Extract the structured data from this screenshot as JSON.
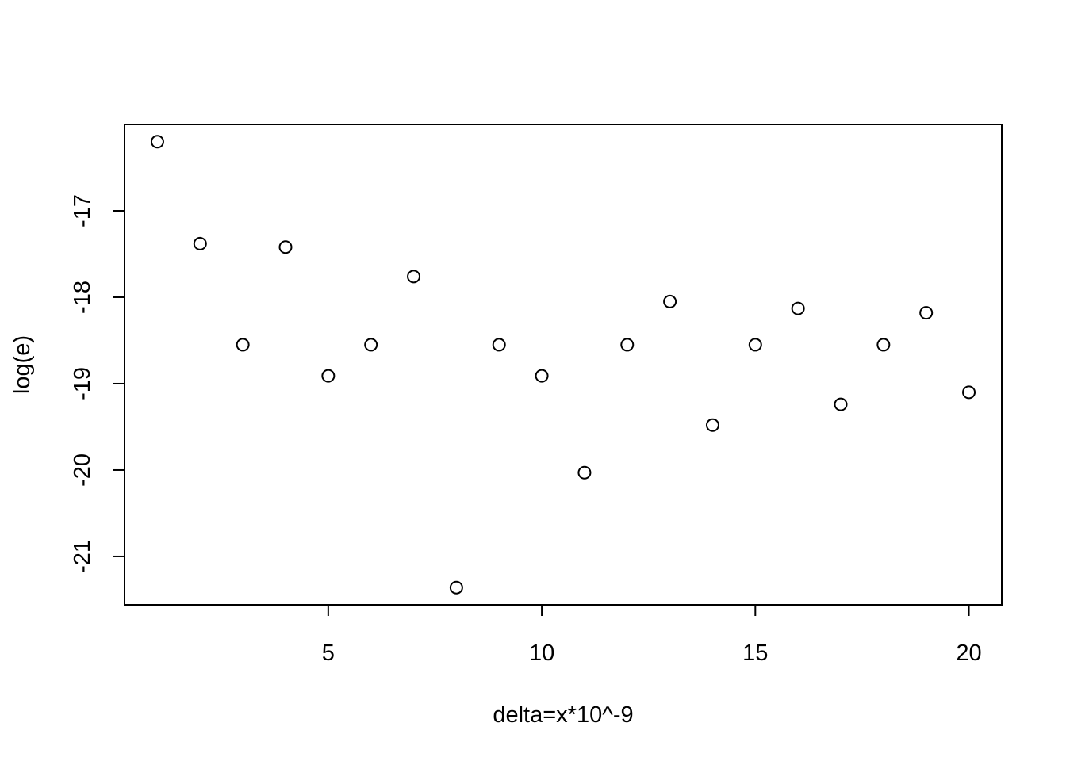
{
  "chart_data": {
    "type": "scatter",
    "title": "",
    "xlabel": "delta=x*10^-9",
    "ylabel": "log(e)",
    "x": [
      1,
      2,
      3,
      4,
      5,
      6,
      7,
      8,
      9,
      10,
      11,
      12,
      13,
      14,
      15,
      16,
      17,
      18,
      19,
      20
    ],
    "y": [
      -16.2,
      -17.38,
      -18.55,
      -17.42,
      -18.91,
      -18.55,
      -17.76,
      -21.36,
      -18.55,
      -18.91,
      -20.03,
      -18.55,
      -18.05,
      -19.48,
      -18.55,
      -18.13,
      -19.24,
      -18.55,
      -18.18,
      -19.1
    ],
    "xlim": [
      0.23,
      20.77
    ],
    "ylim": [
      -21.56,
      -16.0
    ],
    "x_ticks": [
      5,
      10,
      15,
      20
    ],
    "x_tick_labels": [
      "5",
      "10",
      "15",
      "20"
    ],
    "y_ticks": [
      -17,
      -18,
      -19,
      -20,
      -21
    ],
    "y_tick_labels": [
      "-17",
      "-18",
      "-19",
      "-20",
      "-21"
    ],
    "marker": "open-circle",
    "grid": false,
    "legend": "none"
  }
}
